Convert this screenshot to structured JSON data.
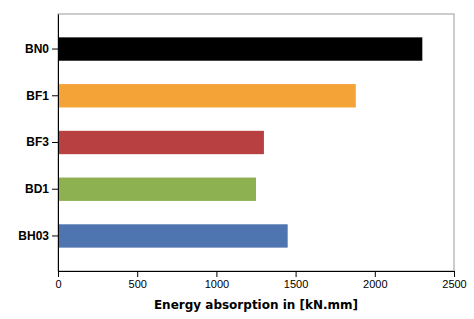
{
  "chart_data": {
    "type": "bar",
    "orientation": "horizontal",
    "categories": [
      "BH03",
      "BD1",
      "BF3",
      "BF1",
      "BN0"
    ],
    "values": [
      1450,
      1250,
      1300,
      1880,
      2300
    ],
    "colors": [
      "#4F75B0",
      "#8DB050",
      "#B94040",
      "#F4A336",
      "#000000"
    ],
    "xlabel": "Energy absorption in [kN.mm]",
    "xlim": [
      0,
      2500
    ],
    "xticks": [
      0,
      500,
      1000,
      1500,
      2000,
      2500
    ],
    "grid": false
  }
}
